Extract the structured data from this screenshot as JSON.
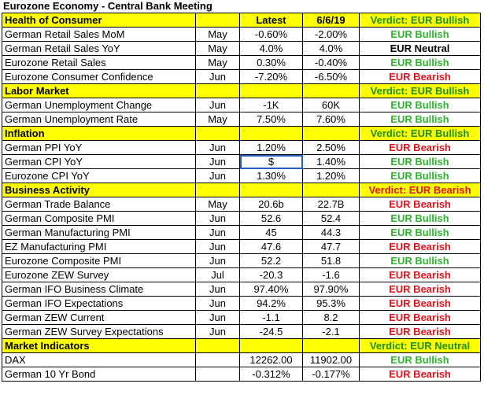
{
  "title": "Eurozone Economy - Central Bank Meeting",
  "header": {
    "section": "Health of Consumer",
    "latest": "Latest",
    "prev": "6/6/19",
    "verdict": "Verdict: EUR Bullish"
  },
  "sections": [
    {
      "name": "Health of Consumer",
      "rows": [
        {
          "name": "German Retail Sales MoM",
          "month": "May",
          "latest": "-0.60%",
          "prev": "-2.00%",
          "verdict": "EUR Bullish"
        },
        {
          "name": "German Retail Sales YoY",
          "month": "May",
          "latest": "4.0%",
          "prev": "4.0%",
          "verdict": "EUR Neutral"
        },
        {
          "name": "Eurozone Retail Sales",
          "month": "May",
          "latest": "0.30%",
          "prev": "-0.40%",
          "verdict": "EUR Bullish"
        },
        {
          "name": "Eurozone Consumer Confidence",
          "month": "Jun",
          "latest": "-7.20%",
          "prev": "-6.50%",
          "verdict": "EUR Bearish"
        }
      ]
    },
    {
      "name": "Labor Market",
      "verdict": "Verdict: EUR Bullish",
      "rows": [
        {
          "name": "German Unemployment Change",
          "month": "Jun",
          "latest": "-1K",
          "prev": "60K",
          "verdict": "EUR Bullish"
        },
        {
          "name": "German Unemployment Rate",
          "month": "May",
          "latest": "7.50%",
          "prev": "7.60%",
          "verdict": "EUR Bullish"
        }
      ]
    },
    {
      "name": "Inflation",
      "verdict": "Verdict: EUR Bullish",
      "rows": [
        {
          "name": "German PPI YoY",
          "month": "Jun",
          "latest": "1.20%",
          "prev": "2.50%",
          "verdict": "EUR Bearish"
        },
        {
          "name": "German CPI YoY",
          "month": "Jun",
          "latest": "$",
          "prev": "1.40%",
          "verdict": "EUR Bullish"
        },
        {
          "name": "Eurozone CPI YoY",
          "month": "Jun",
          "latest": "1.30%",
          "prev": "1.20%",
          "verdict": "EUR Bullish"
        }
      ]
    },
    {
      "name": "Business Activity",
      "verdict": "Verdict: EUR Bearish",
      "rows": [
        {
          "name": "German Trade Balance",
          "month": "May",
          "latest": "20.6b",
          "prev": "22.7B",
          "verdict": "EUR Bearish"
        },
        {
          "name": "German Composite PMI",
          "month": "Jun",
          "latest": "52.6",
          "prev": "52.4",
          "verdict": "EUR Bullish"
        },
        {
          "name": "German Manufacturing PMI",
          "month": "Jun",
          "latest": "45",
          "prev": "44.3",
          "verdict": "EUR Bullish"
        },
        {
          "name": "EZ Manufacturing PMI",
          "month": "Jun",
          "latest": "47.6",
          "prev": "47.7",
          "verdict": "EUR Bearish"
        },
        {
          "name": "Eurozone Composite PMI",
          "month": "Jun",
          "latest": "52.2",
          "prev": "51.8",
          "verdict": "EUR Bullish"
        },
        {
          "name": "Eurozone ZEW Survey",
          "month": "Jul",
          "latest": "-20.3",
          "prev": "-1.6",
          "verdict": "EUR Bearish"
        },
        {
          "name": "German IFO Business Climate",
          "month": "Jun",
          "latest": "97.40%",
          "prev": "97.90%",
          "verdict": "EUR Bearish"
        },
        {
          "name": "German IFO Expectations",
          "month": "Jun",
          "latest": "94.2%",
          "prev": "95.3%",
          "verdict": "EUR Bearish"
        },
        {
          "name": "German ZEW Current",
          "month": "Jun",
          "latest": "-1.1",
          "prev": "8.2",
          "verdict": "EUR Bearish"
        },
        {
          "name": "German ZEW Survey Expectations",
          "month": "Jun",
          "latest": "-24.5",
          "prev": "-2.1",
          "verdict": "EUR Bearish"
        }
      ]
    },
    {
      "name": "Market Indicators",
      "verdict": "Verdict: EUR Neutral",
      "rows": [
        {
          "name": "DAX",
          "month": "",
          "latest": "12262.00",
          "prev": "11902.00",
          "verdict": "EUR Bullish"
        },
        {
          "name": "German 10 Yr Bond",
          "month": "",
          "latest": "-0.312%",
          "prev": "-0.177%",
          "verdict": "EUR Bearish"
        }
      ]
    }
  ],
  "colors": {
    "section_bg": "#ffff00",
    "bullish": "#2db52d",
    "bearish": "#e3131b",
    "neutral": "#000000",
    "selection": "#1f5fbf"
  }
}
